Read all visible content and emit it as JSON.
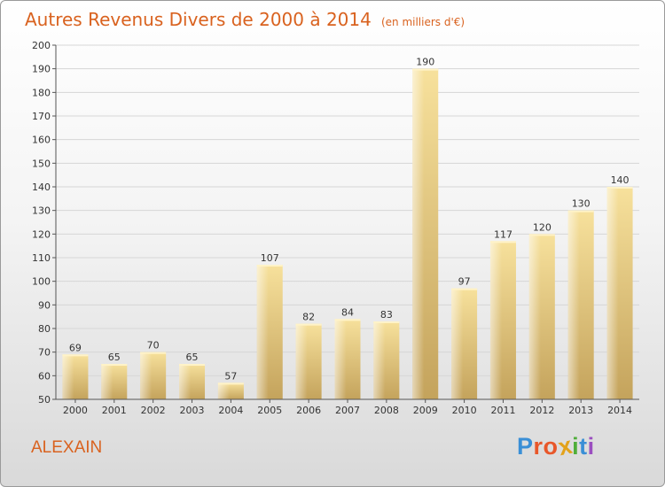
{
  "title": "Autres Revenus Divers de 2000 à 2014",
  "unit_note": "(en milliers d'€)",
  "commune": "ALEXAIN",
  "logo": {
    "text": "Proxiti",
    "letters": [
      "P",
      "r",
      "o",
      "x",
      "i",
      "t",
      "i"
    ],
    "colors": [
      "#3a8fd6",
      "#e8572a",
      "#e8572a",
      "#e3a21a",
      "#4fae3a",
      "#3a8fd6",
      "#9b4fc0"
    ]
  },
  "colors": {
    "title": "#d9621f",
    "bar_light": "#f6df9a",
    "bar_dark": "#c6a55e"
  },
  "chart_data": {
    "type": "bar",
    "title": "Autres Revenus Divers de 2000 à 2014",
    "subtitle": "(en milliers d'€)",
    "xlabel": "",
    "ylabel": "",
    "categories": [
      "2000",
      "2001",
      "2002",
      "2003",
      "2004",
      "2005",
      "2006",
      "2007",
      "2008",
      "2009",
      "2010",
      "2011",
      "2012",
      "2013",
      "2014"
    ],
    "values": [
      69,
      65,
      70,
      65,
      57,
      107,
      82,
      84,
      83,
      190,
      97,
      117,
      120,
      130,
      140
    ],
    "ylim": [
      50,
      200
    ],
    "yticks": [
      50,
      60,
      70,
      80,
      90,
      100,
      110,
      120,
      130,
      140,
      150,
      160,
      170,
      180,
      190,
      200
    ],
    "grid": true,
    "legend": "none"
  }
}
